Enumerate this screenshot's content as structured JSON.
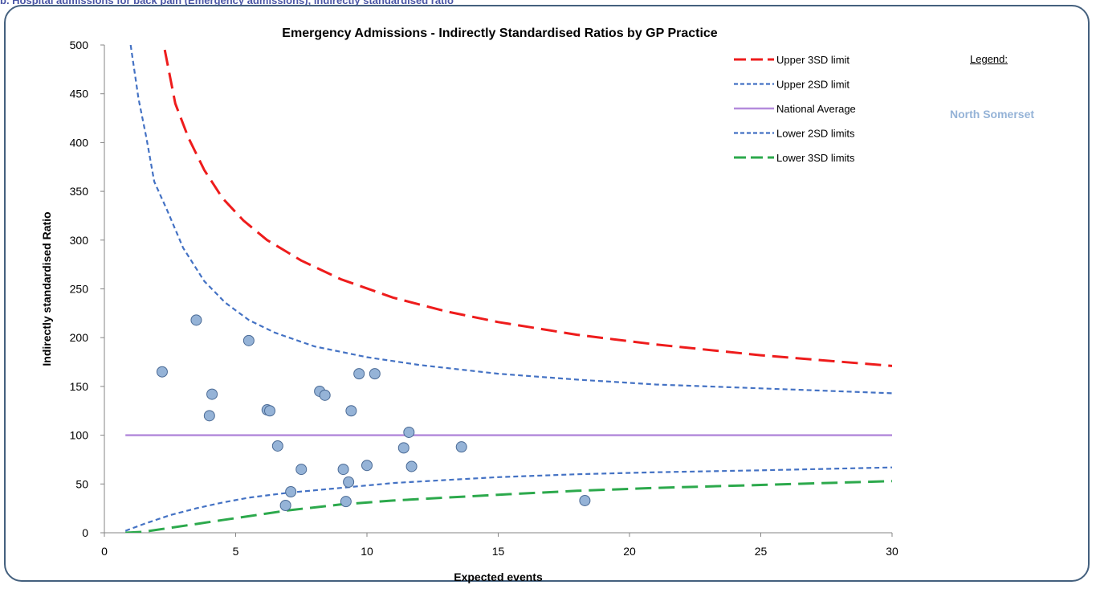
{
  "caption": "b. Hospital admissions for back pain (Emergency admissions), indirectly standardised ratio",
  "side_panel": {
    "legend_heading": "Legend:",
    "area_name": "North Somerset",
    "area_color": "#95b3d7"
  },
  "chart_data": {
    "type": "scatter",
    "title": "Emergency Admissions - Indirectly Standardised Ratios by GP Practice",
    "xlabel": "Expected events",
    "ylabel": "Indirectly standardised Ratio",
    "xlim": [
      0,
      30
    ],
    "ylim": [
      0,
      500
    ],
    "xticks": [
      0,
      5,
      10,
      15,
      20,
      25,
      30
    ],
    "yticks": [
      0,
      50,
      100,
      150,
      200,
      250,
      300,
      350,
      400,
      450,
      500
    ],
    "grid": false,
    "legend_position": "top-right",
    "points": {
      "color": "#95b3d7",
      "x": [
        2.2,
        3.5,
        4.0,
        4.1,
        5.5,
        6.2,
        6.3,
        6.6,
        6.9,
        7.1,
        7.5,
        8.2,
        8.4,
        9.1,
        9.2,
        9.3,
        9.4,
        9.7,
        10.0,
        10.3,
        11.4,
        11.6,
        11.7,
        13.6,
        18.3
      ],
      "y": [
        165,
        218,
        120,
        142,
        197,
        126,
        125,
        89,
        28,
        42,
        65,
        145,
        141,
        65,
        32,
        52,
        125,
        163,
        69,
        163,
        87,
        103,
        68,
        88,
        33
      ]
    },
    "series": [
      {
        "name": "Upper 3SD limit",
        "color": "#ee1c1c",
        "style": "long-dash",
        "x": [
          2.3,
          2.7,
          3.2,
          3.8,
          4.5,
          5.3,
          6.2,
          7.5,
          9,
          11,
          13,
          15,
          18,
          21,
          25,
          30
        ],
        "y": [
          495,
          440,
          405,
          372,
          343,
          320,
          300,
          279,
          260,
          241,
          227,
          216,
          203,
          193,
          182,
          171
        ]
      },
      {
        "name": "Upper 2SD limit",
        "color": "#4472c4",
        "style": "short-dash",
        "x": [
          1.0,
          1.3,
          1.6,
          1.9,
          2.4,
          3.0,
          3.8,
          4.6,
          5.5,
          6.5,
          8,
          10,
          12,
          15,
          18,
          21,
          25,
          30
        ],
        "y": [
          500,
          445,
          405,
          360,
          330,
          292,
          258,
          236,
          218,
          205,
          191,
          180,
          172,
          163,
          157,
          152,
          148,
          143
        ]
      },
      {
        "name": "National Average",
        "color": "#b48cdc",
        "style": "solid",
        "x": [
          0.8,
          30
        ],
        "y": [
          100,
          100
        ]
      },
      {
        "name": "Lower 2SD limits",
        "color": "#4472c4",
        "style": "short-dash",
        "x": [
          0.8,
          1.5,
          2.5,
          3.5,
          4.5,
          5.5,
          7,
          9,
          11,
          13,
          15,
          18,
          21,
          25,
          30
        ],
        "y": [
          2,
          9,
          18,
          25,
          31,
          36,
          41,
          46,
          51,
          54,
          57,
          60,
          62,
          64,
          67
        ]
      },
      {
        "name": "Lower 3SD limits",
        "color": "#2ca94c",
        "style": "long-dash",
        "x": [
          0.8,
          1.5,
          2.5,
          3.5,
          4.5,
          5.5,
          7,
          9,
          11,
          13,
          15,
          18,
          21,
          25,
          30
        ],
        "y": [
          0,
          1,
          5,
          9,
          13,
          17,
          23,
          29,
          33,
          36,
          39,
          43,
          46,
          49,
          53
        ]
      }
    ]
  }
}
